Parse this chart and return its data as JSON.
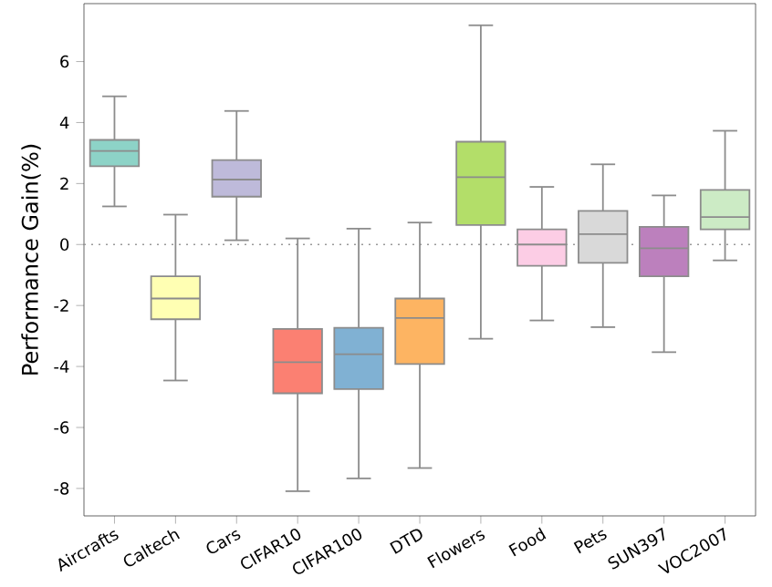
{
  "chart_data": {
    "type": "box",
    "ylabel": "Performance Gain(%)",
    "categories": [
      "Aircrafts",
      "Caltech",
      "Cars",
      "CIFAR10",
      "CIFAR100",
      "DTD",
      "Flowers",
      "Food",
      "Pets",
      "SUN397",
      "VOC2007"
    ],
    "colors": [
      "#8dd3c7",
      "#ffffb3",
      "#bebada",
      "#fb8072",
      "#80b1d3",
      "#fdb462",
      "#b3de69",
      "#fccde5",
      "#d9d9d9",
      "#bc80bd",
      "#ccebc5"
    ],
    "boxes": [
      {
        "low": 1.25,
        "q1": 2.57,
        "median": 3.07,
        "q3": 3.43,
        "high": 4.86
      },
      {
        "low": -4.46,
        "q1": -2.45,
        "median": -1.77,
        "q3": -1.04,
        "high": 0.98
      },
      {
        "low": 0.14,
        "q1": 1.57,
        "median": 2.13,
        "q3": 2.77,
        "high": 4.38
      },
      {
        "low": -8.09,
        "q1": -4.88,
        "median": -3.86,
        "q3": -2.77,
        "high": 0.2
      },
      {
        "low": -7.67,
        "q1": -4.74,
        "median": -3.6,
        "q3": -2.73,
        "high": 0.52
      },
      {
        "low": -7.33,
        "q1": -3.92,
        "median": -2.41,
        "q3": -1.77,
        "high": 0.72
      },
      {
        "low": -3.09,
        "q1": 0.64,
        "median": 2.21,
        "q3": 3.37,
        "high": 7.19
      },
      {
        "low": -2.49,
        "q1": -0.7,
        "median": 0.0,
        "q3": 0.5,
        "high": 1.89
      },
      {
        "low": -2.71,
        "q1": -0.6,
        "median": 0.34,
        "q3": 1.1,
        "high": 2.63
      },
      {
        "low": -3.53,
        "q1": -1.04,
        "median": -0.12,
        "q3": 0.58,
        "high": 1.61
      },
      {
        "low": -0.52,
        "q1": 0.5,
        "median": 0.9,
        "q3": 1.79,
        "high": 3.73
      }
    ],
    "ylim": [
      -8.9,
      7.9
    ],
    "yticks": [
      -8,
      -6,
      -4,
      -2,
      0,
      2,
      4,
      6
    ],
    "ref_lines": [
      {
        "axis": "y",
        "value": 0,
        "color": "#999999",
        "line_style": "dotted"
      }
    ]
  }
}
